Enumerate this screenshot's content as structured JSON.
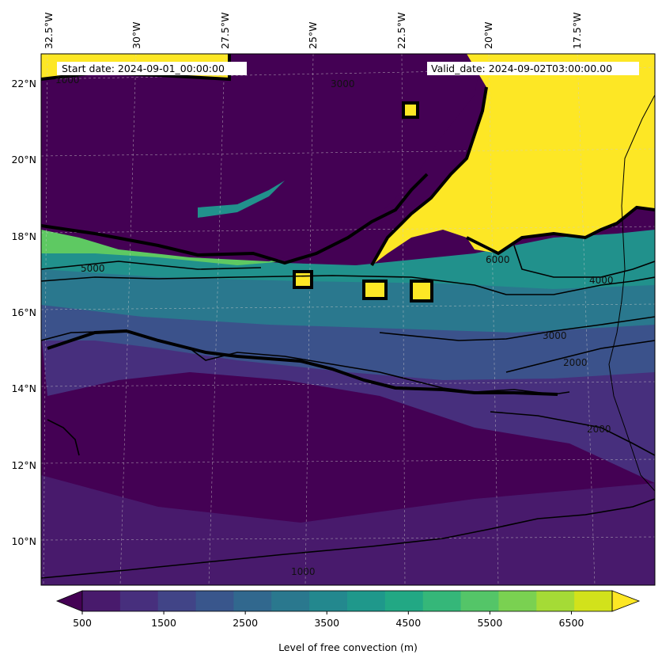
{
  "header": {
    "start_date": "Start date: 2024-09-01_00:00:00",
    "valid_date": "Valid_date: 2024-09-02T03:00:00.00"
  },
  "axes": {
    "lon_labels": [
      "32.5°W",
      "30°W",
      "27.5°W",
      "25°W",
      "22.5°W",
      "20°W",
      "17.5°W"
    ],
    "lat_labels": [
      "22°N",
      "20°N",
      "18°N",
      "16°N",
      "14°N",
      "12°N",
      "10°N"
    ]
  },
  "colorbar": {
    "title": "Level of free convection (m)",
    "tick_labels": [
      "500",
      "1500",
      "2500",
      "3500",
      "4500",
      "5500",
      "6500"
    ],
    "levels": [
      500,
      1000,
      1500,
      2000,
      2500,
      3000,
      3500,
      4000,
      4500,
      5000,
      5500,
      6000,
      6500,
      7000
    ],
    "colors": [
      "#440154",
      "#481a6c",
      "#472f7d",
      "#414487",
      "#39568c",
      "#31688e",
      "#2a788e",
      "#23888e",
      "#1f988b",
      "#22a884",
      "#35b779",
      "#54c568",
      "#7ad151",
      "#a5db36",
      "#d2e21b",
      "#fde725"
    ],
    "extend": "both"
  },
  "contour_labels": [
    "1000",
    "3000",
    "5000",
    "6000",
    "4000",
    "2000"
  ],
  "map_colors": {
    "ocean_low": "#440154",
    "band_mid": "#3b528b",
    "band_high": "#21918c",
    "band_top": "#5ec962",
    "saturated": "#fde725",
    "gridline": "#cccccc",
    "contour": "#000000"
  },
  "chart_data": {
    "type": "heatmap",
    "variable": "Level of free convection (m)",
    "xlabel": "",
    "ylabel": "",
    "lon_range": [
      "32.5°W",
      "16°W"
    ],
    "lat_range": [
      "8.8°N",
      "22.8°N"
    ],
    "contour_levels": [
      1000,
      2000,
      3000,
      4000,
      5000,
      6000
    ]
  }
}
